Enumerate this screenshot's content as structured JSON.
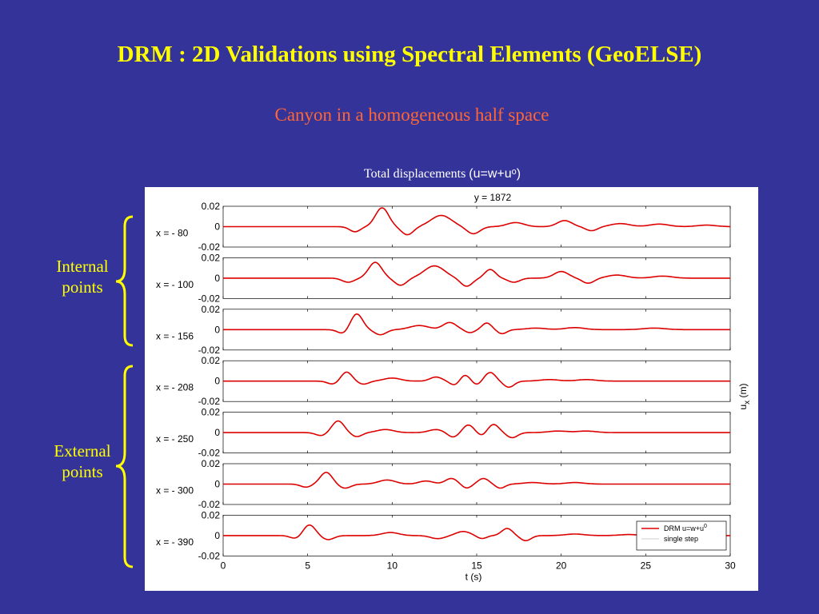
{
  "slide": {
    "title": "DRM : 2D Validations using Spectral Elements (GeoELSE)",
    "subtitle": "Canyon in a homogeneous half space",
    "caption_text": "Total displacements ",
    "caption_formula": "(u=w+uᵒ)",
    "group_internal": [
      "Internal",
      "points"
    ],
    "group_external": [
      "External",
      "points"
    ],
    "colors": {
      "background": "#333399",
      "title": "#ffff00",
      "subtitle": "#ff6633",
      "trace": "#dd0000",
      "brace": "#ffff00"
    }
  },
  "chart_data": {
    "type": "line",
    "top_label": "y = 1872",
    "xlabel": "t (s)",
    "ylabel": "u",
    "ylabel_sub": "x",
    "ylabel_unit": "(m)",
    "x_ticks": [
      0,
      5,
      10,
      15,
      20,
      25,
      30
    ],
    "xlim": [
      0,
      30
    ],
    "ylim": [
      -0.02,
      0.02
    ],
    "y_ticks": [
      "0.02",
      "0",
      "-0.02"
    ],
    "legend": {
      "placement": "bottom-right",
      "entries": [
        {
          "text": "DRM u=w+u",
          "sup": "0",
          "color": "#dd0000"
        },
        {
          "text": "single step",
          "color": "#cccccc"
        }
      ]
    },
    "panels": [
      {
        "label": "x = - 80",
        "pulses": [
          [
            7.8,
            -0.005,
            0.45
          ],
          [
            9.4,
            0.0185,
            0.55
          ],
          [
            10.9,
            -0.008,
            0.5
          ],
          [
            12.9,
            0.011,
            0.85
          ],
          [
            14.8,
            -0.007,
            0.55
          ],
          [
            17.3,
            0.004,
            0.7
          ],
          [
            20.2,
            0.006,
            0.6
          ],
          [
            21.8,
            -0.004,
            0.5
          ],
          [
            23.5,
            0.003,
            0.8
          ],
          [
            25.8,
            0.0025,
            0.8
          ],
          [
            28.6,
            0.0015,
            0.8
          ]
        ]
      },
      {
        "label": "x = - 100",
        "pulses": [
          [
            7.4,
            -0.004,
            0.5
          ],
          [
            9.0,
            0.0155,
            0.55
          ],
          [
            10.5,
            -0.007,
            0.5
          ],
          [
            12.5,
            0.012,
            0.85
          ],
          [
            14.4,
            -0.008,
            0.5
          ],
          [
            15.8,
            0.0085,
            0.45
          ],
          [
            17.2,
            -0.004,
            0.5
          ],
          [
            20.0,
            0.0065,
            0.6
          ],
          [
            21.6,
            -0.005,
            0.5
          ],
          [
            23.3,
            0.003,
            0.8
          ],
          [
            26.0,
            0.002,
            0.8
          ]
        ]
      },
      {
        "label": "x = - 156",
        "pulses": [
          [
            7.1,
            -0.004,
            0.45
          ],
          [
            7.9,
            0.0155,
            0.5
          ],
          [
            9.3,
            -0.005,
            0.5
          ],
          [
            11.6,
            0.004,
            0.8
          ],
          [
            13.4,
            0.007,
            0.55
          ],
          [
            14.6,
            -0.003,
            0.4
          ],
          [
            15.6,
            0.0065,
            0.4
          ],
          [
            16.5,
            -0.004,
            0.4
          ],
          [
            18.5,
            0.0015,
            0.8
          ],
          [
            20.8,
            0.002,
            0.8
          ],
          [
            25.5,
            0.0015,
            0.9
          ]
        ]
      },
      {
        "label": "x = - 208",
        "pulses": [
          [
            6.5,
            -0.003,
            0.45
          ],
          [
            7.3,
            0.009,
            0.45
          ],
          [
            8.3,
            -0.003,
            0.45
          ],
          [
            10.0,
            0.003,
            0.7
          ],
          [
            12.6,
            0.004,
            0.5
          ],
          [
            13.7,
            -0.004,
            0.4
          ],
          [
            14.3,
            0.006,
            0.4
          ],
          [
            15.0,
            -0.0035,
            0.35
          ],
          [
            15.8,
            0.0085,
            0.45
          ],
          [
            16.9,
            -0.006,
            0.45
          ],
          [
            19.3,
            0.0015,
            0.8
          ],
          [
            21.5,
            0.0015,
            0.8
          ]
        ]
      },
      {
        "label": "x = - 250",
        "pulses": [
          [
            5.8,
            -0.003,
            0.45
          ],
          [
            6.8,
            0.0115,
            0.5
          ],
          [
            7.9,
            -0.004,
            0.45
          ],
          [
            9.6,
            0.003,
            0.7
          ],
          [
            12.6,
            0.003,
            0.6
          ],
          [
            13.6,
            -0.0045,
            0.45
          ],
          [
            14.5,
            0.0075,
            0.45
          ],
          [
            15.3,
            -0.003,
            0.35
          ],
          [
            16.0,
            0.008,
            0.45
          ],
          [
            17.1,
            -0.005,
            0.45
          ],
          [
            19.8,
            0.0015,
            0.8
          ],
          [
            21.5,
            0.0015,
            0.8
          ]
        ]
      },
      {
        "label": "x = - 300",
        "pulses": [
          [
            4.9,
            -0.003,
            0.45
          ],
          [
            6.1,
            0.0115,
            0.5
          ],
          [
            7.2,
            -0.004,
            0.5
          ],
          [
            9.7,
            0.004,
            0.7
          ],
          [
            12.0,
            0.003,
            0.6
          ],
          [
            13.5,
            0.0055,
            0.5
          ],
          [
            14.4,
            -0.004,
            0.4
          ],
          [
            15.4,
            0.0055,
            0.45
          ],
          [
            16.4,
            -0.004,
            0.4
          ],
          [
            18.3,
            0.0015,
            0.8
          ],
          [
            20.8,
            0.0015,
            0.8
          ]
        ]
      },
      {
        "label": "x = - 390",
        "pulses": [
          [
            4.3,
            -0.003,
            0.45
          ],
          [
            5.1,
            0.0105,
            0.5
          ],
          [
            6.2,
            -0.004,
            0.5
          ],
          [
            9.9,
            0.003,
            0.7
          ],
          [
            12.7,
            -0.003,
            0.6
          ],
          [
            14.2,
            0.004,
            0.6
          ],
          [
            15.3,
            -0.003,
            0.4
          ],
          [
            16.8,
            0.007,
            0.45
          ],
          [
            17.9,
            -0.005,
            0.45
          ],
          [
            20.8,
            0.0015,
            0.8
          ],
          [
            24.0,
            0.001,
            0.8
          ]
        ]
      }
    ]
  }
}
